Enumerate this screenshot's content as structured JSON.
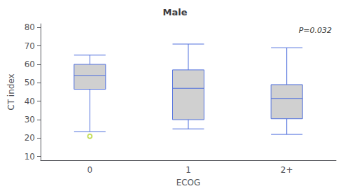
{
  "chart_data": {
    "type": "box",
    "title": "Male",
    "xlabel": "ECOG",
    "ylabel": "CT index",
    "categories": [
      "0",
      "1",
      "2+"
    ],
    "values": [
      [
        23.5,
        46.5,
        54.0,
        60.0,
        65.0
      ],
      [
        25.0,
        30.0,
        47.0,
        57.0,
        71.0
      ],
      [
        22.0,
        30.5,
        41.5,
        49.0,
        69.0
      ]
    ],
    "fliers": [
      [
        21.0
      ],
      [],
      []
    ],
    "color": "#d0d0d0",
    "ylim": [
      8,
      82
    ],
    "yticks": [
      10,
      20,
      30,
      40,
      50,
      60,
      70,
      80
    ],
    "grid": false,
    "annotation": "P=0.032"
  }
}
